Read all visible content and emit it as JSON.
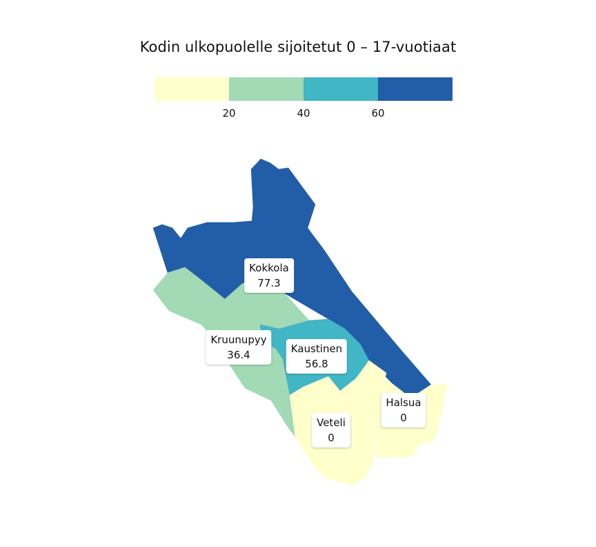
{
  "title": "Kodin ulkopuolelle sijoitetut 0 – 17-vuotiaat",
  "legend": {
    "colors": [
      "#ffffcc",
      "#a1dab4",
      "#41b6c4",
      "#225ea8"
    ],
    "ticks": [
      "20",
      "40",
      "60"
    ]
  },
  "regions": [
    {
      "name": "Kokkola",
      "value": "77.3",
      "color": "#225ea8"
    },
    {
      "name": "Kruunupyy",
      "value": "36.4",
      "color": "#a1dab4"
    },
    {
      "name": "Kaustinen",
      "value": "56.8",
      "color": "#41b6c4"
    },
    {
      "name": "Veteli",
      "value": "0",
      "color": "#ffffcc"
    },
    {
      "name": "Halsua",
      "value": "0",
      "color": "#ffffcc"
    }
  ]
}
